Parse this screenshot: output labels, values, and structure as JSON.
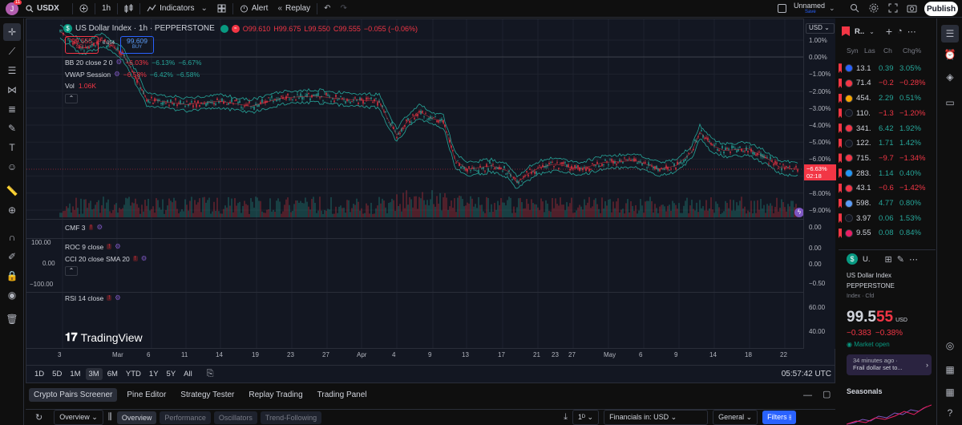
{
  "topbar": {
    "avatar_letter": "J",
    "avatar_badge": "11",
    "symbol": "USDX",
    "interval": "1h",
    "indicators": "Indicators",
    "alert": "Alert",
    "replay": "Replay",
    "layout_name": "Unnamed",
    "layout_status": "Save",
    "publish": "Publish"
  },
  "legend": {
    "title": "US Dollar Index · 1h · PEPPERSTONE",
    "ohlc_o": "O99.610",
    "ohlc_h": "H99.675",
    "ohlc_l": "L99.550",
    "ohlc_c": "C99.555",
    "ohlc_chg": "−0.055 (−0.06%)",
    "sell_price": "99.555",
    "sell_label": "SELL",
    "spread": "0.054",
    "buy_price": "99.609",
    "buy_label": "BUY",
    "bb_label": "BB 20 close 2 0",
    "bb_v1": "−6.03%",
    "bb_v2": "−6.13%",
    "bb_v3": "−6.67%",
    "vwap_label": "VWAP Session",
    "vwap_v1": "−6.58%",
    "vwap_v2": "−6.42%",
    "vwap_v3": "−6.58%",
    "vol_label": "Vol",
    "vol_value": "1.06K"
  },
  "panes": {
    "cmf": "CMF 3",
    "roc": "ROC 9 close",
    "cci": "CCI 20 close SMA 20",
    "rsi": "RSI 14 close"
  },
  "price_scale": {
    "currency": "USD",
    "ticks": [
      "1.00%",
      "0.00%",
      "−1.00%",
      "−2.00%",
      "−3.00%",
      "−4.00%",
      "−5.00%",
      "−6.00%",
      "−7.00%",
      "−8.00%",
      "−9.00%"
    ],
    "current": "−6.63%",
    "countdown": "02:18",
    "cmf_ticks": [
      "0.00"
    ],
    "roc_ticks": [
      "0.00",
      "0.00",
      "−0.50"
    ],
    "left_ticks": [
      "100.00",
      "0.00",
      "−100.00"
    ],
    "rsi_ticks": [
      "60.00",
      "40.00"
    ]
  },
  "time_axis": [
    "3",
    "Mar",
    "6",
    "11",
    "14",
    "19",
    "23",
    "27",
    "Apr",
    "4",
    "9",
    "13",
    "17",
    "21",
    "23",
    "27",
    "May",
    "6",
    "9",
    "14",
    "18",
    "22"
  ],
  "range_buttons": [
    "1D",
    "5D",
    "1M",
    "3M",
    "6M",
    "YTD",
    "1Y",
    "5Y",
    "All"
  ],
  "clock": "05:57:42 UTC",
  "watermark": "TradingView",
  "bottom_tabs": [
    "Crypto Pairs Screener",
    "Pine Editor",
    "Strategy Tester",
    "Replay Trading",
    "Trading Panel"
  ],
  "screener": {
    "overview_select": "Overview",
    "pills": [
      "Overview",
      "Performance",
      "Oscillators",
      "Trend-Following"
    ],
    "interval": "1ᴰ",
    "financials": "Financials in: USD",
    "general": "General",
    "filters": "Filters"
  },
  "watchlist": {
    "header": "R..",
    "columns": [
      "Syn",
      "Las",
      "Ch",
      "Chg%"
    ],
    "rows": [
      {
        "icon_color": "#2962ff",
        "last": "13.1",
        "chg": "0.39",
        "chgp": "3.05%",
        "dir": "up"
      },
      {
        "icon_color": "#f23645",
        "last": "71.4",
        "chg": "−0.2",
        "chgp": "−0.28%",
        "dir": "down"
      },
      {
        "icon_color": "#f7a600",
        "last": "454.",
        "chg": "2.29",
        "chgp": "0.51%",
        "dir": "up"
      },
      {
        "icon_color": "#131722",
        "last": "110.",
        "chg": "−1.3",
        "chgp": "−1.20%",
        "dir": "down"
      },
      {
        "icon_color": "#f23645",
        "last": "341.",
        "chg": "6.42",
        "chgp": "1.92%",
        "dir": "up"
      },
      {
        "icon_color": "#131722",
        "last": "122.",
        "chg": "1.71",
        "chgp": "1.42%",
        "dir": "up"
      },
      {
        "icon_color": "#f23645",
        "last": "715.",
        "chg": "−9.7",
        "chgp": "−1.34%",
        "dir": "down"
      },
      {
        "icon_color": "#2196f3",
        "last": "283.",
        "chg": "1.14",
        "chgp": "0.40%",
        "dir": "up"
      },
      {
        "icon_color": "#f23645",
        "last": "43.1",
        "chg": "−0.6",
        "chgp": "−1.42%",
        "dir": "down"
      },
      {
        "icon_color": "#5b9cf6",
        "last": "598.",
        "chg": "4.77",
        "chgp": "0.80%",
        "dir": "up"
      },
      {
        "icon_color": "#131722",
        "last": "3.97",
        "chg": "0.06",
        "chgp": "1.53%",
        "dir": "up"
      },
      {
        "icon_color": "#e91e63",
        "last": "9.55",
        "chg": "0.08",
        "chgp": "0.84%",
        "dir": "up"
      }
    ]
  },
  "details": {
    "short": "U.",
    "name": "US Dollar Index",
    "exchange": "PEPPERSTONE",
    "type": "Index · Cfd",
    "price_main": "99.5",
    "price_tail": "55",
    "currency": "USD",
    "change": "−0.383",
    "change_pct": "−0.38%",
    "market": "Market open",
    "news_time": "34 minutes ago ·",
    "news_text": "Frail dollar set to...",
    "seasonals": "Seasonals"
  },
  "colors": {
    "up": "#26a69a",
    "down": "#f23645",
    "accent": "#2962ff",
    "band": "#26a69a"
  }
}
